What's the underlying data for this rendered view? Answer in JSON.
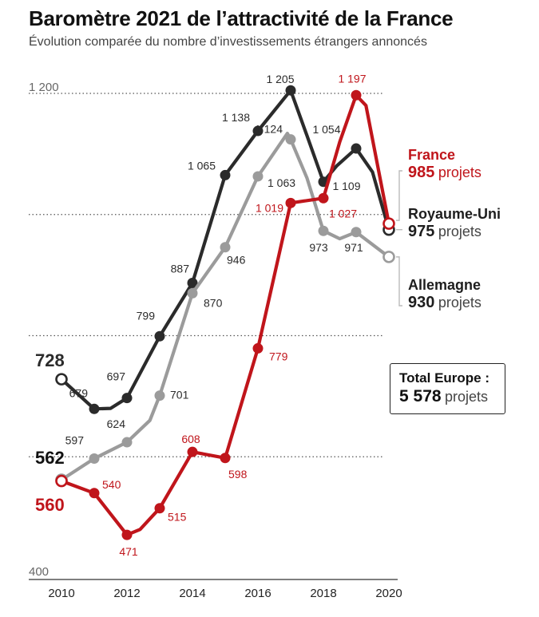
{
  "title": "Baromètre 2021 de l’attractivité de la France",
  "subtitle": "Évolution comparée du nombre d’investissements étrangers annoncés",
  "colors": {
    "france": "#c0151b",
    "uk": "#2b2b2b",
    "germany": "#9b9b9b"
  },
  "chart_data": {
    "type": "line",
    "ylim": [
      400,
      1200
    ],
    "yticks": [
      {
        "value": 400,
        "label": "400"
      },
      {
        "value": 1200,
        "label": "1 200"
      }
    ],
    "gridlines": [
      600,
      800,
      1000,
      1200
    ],
    "xlim": [
      2010,
      2020
    ],
    "xticks": [
      2010,
      2012,
      2014,
      2016,
      2018,
      2020
    ],
    "series": [
      {
        "key": "uk",
        "name": "Royaume-Uni",
        "color": "#2b2b2b",
        "points": [
          [
            2010,
            728
          ],
          [
            2011,
            679
          ],
          [
            2011.5,
            680
          ],
          [
            2012,
            697
          ],
          [
            2013,
            799
          ],
          [
            2014,
            887
          ],
          [
            2015,
            1065
          ],
          [
            2016,
            1138
          ],
          [
            2017,
            1205
          ],
          [
            2017.5,
            1130
          ],
          [
            2018,
            1054
          ],
          [
            2018.4,
            1080
          ],
          [
            2019,
            1109
          ],
          [
            2019.5,
            1070
          ],
          [
            2020,
            975
          ]
        ],
        "labeled": [
          {
            "x": 2011,
            "y": 679,
            "text": "679"
          },
          {
            "x": 2012,
            "y": 697,
            "text": "697"
          },
          {
            "x": 2013,
            "y": 799,
            "text": "799"
          },
          {
            "x": 2014,
            "y": 887,
            "text": "887"
          },
          {
            "x": 2015,
            "y": 1065,
            "text": "1 065"
          },
          {
            "x": 2016,
            "y": 1138,
            "text": "1 138"
          },
          {
            "x": 2017,
            "y": 1205,
            "text": "1 205"
          },
          {
            "x": 2018,
            "y": 1054,
            "text": "1 054"
          },
          {
            "x": 2019,
            "y": 1109,
            "text": "1 109"
          }
        ],
        "start_label": "728",
        "end_value": "975"
      },
      {
        "key": "germany",
        "name": "Allemagne",
        "color": "#9b9b9b",
        "points": [
          [
            2010,
            562
          ],
          [
            2011,
            597
          ],
          [
            2012,
            624
          ],
          [
            2012.7,
            660
          ],
          [
            2013,
            701
          ],
          [
            2014,
            870
          ],
          [
            2015,
            946
          ],
          [
            2016,
            1063
          ],
          [
            2016.9,
            1134
          ],
          [
            2017,
            1124
          ],
          [
            2017.5,
            1060
          ],
          [
            2018,
            973
          ],
          [
            2018.5,
            960
          ],
          [
            2019,
            971
          ],
          [
            2020,
            930
          ]
        ],
        "labeled": [
          {
            "x": 2011,
            "y": 597,
            "text": "597"
          },
          {
            "x": 2012,
            "y": 624,
            "text": "624"
          },
          {
            "x": 2013,
            "y": 701,
            "text": "701"
          },
          {
            "x": 2014,
            "y": 870,
            "text": "870"
          },
          {
            "x": 2015,
            "y": 946,
            "text": "946"
          },
          {
            "x": 2016,
            "y": 1063,
            "text": "1 063"
          },
          {
            "x": 2017,
            "y": 1124,
            "text": "1 124"
          },
          {
            "x": 2018,
            "y": 973,
            "text": "973"
          },
          {
            "x": 2019,
            "y": 971,
            "text": "971"
          }
        ],
        "start_label": "562",
        "end_value": "930"
      },
      {
        "key": "france",
        "name": "France",
        "color": "#c0151b",
        "points": [
          [
            2010,
            560
          ],
          [
            2011,
            540
          ],
          [
            2012,
            471
          ],
          [
            2012.4,
            480
          ],
          [
            2013,
            515
          ],
          [
            2014,
            608
          ],
          [
            2015,
            598
          ],
          [
            2016,
            779
          ],
          [
            2017,
            1019
          ],
          [
            2018,
            1027
          ],
          [
            2018.5,
            1120
          ],
          [
            2019,
            1197
          ],
          [
            2019.3,
            1180
          ],
          [
            2020,
            985
          ]
        ],
        "labeled": [
          {
            "x": 2011,
            "y": 540,
            "text": "540"
          },
          {
            "x": 2012,
            "y": 471,
            "text": "471"
          },
          {
            "x": 2013,
            "y": 515,
            "text": "515"
          },
          {
            "x": 2014,
            "y": 608,
            "text": "608"
          },
          {
            "x": 2015,
            "y": 598,
            "text": "598"
          },
          {
            "x": 2016,
            "y": 779,
            "text": "779"
          },
          {
            "x": 2017,
            "y": 1019,
            "text": "1 019"
          },
          {
            "x": 2018,
            "y": 1027,
            "text": "1 027"
          },
          {
            "x": 2019,
            "y": 1197,
            "text": "1 197"
          }
        ],
        "start_label": "560",
        "end_value": "985"
      }
    ]
  },
  "legend": {
    "france": {
      "name": "France",
      "value": "985",
      "unit": "projets"
    },
    "uk": {
      "name": "Royaume-Uni",
      "value": "975",
      "unit": "projets"
    },
    "germany": {
      "name": "Allemagne",
      "value": "930",
      "unit": "projets"
    }
  },
  "total": {
    "label": "Total Europe :",
    "value": "5 578",
    "unit": "projets"
  }
}
